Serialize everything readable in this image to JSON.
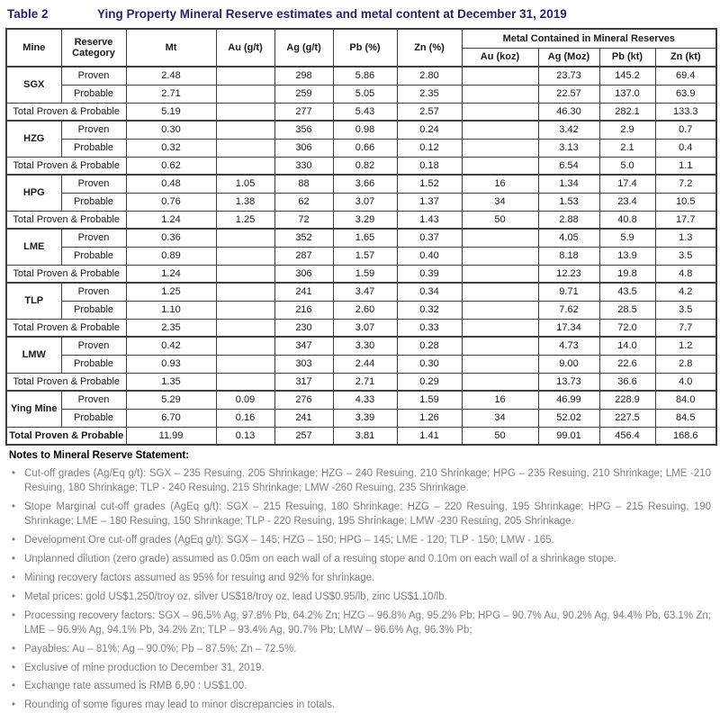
{
  "title": {
    "label": "Table 2",
    "text": "Ying Property Mineral Reserve estimates and metal content at December 31, 2019"
  },
  "accent_color": "#2d2168",
  "table": {
    "headers": {
      "mine": "Mine",
      "reserve_category": "Reserve Category",
      "mt": "Mt",
      "au_gt": "Au (g/t)",
      "ag_gt": "Ag (g/t)",
      "pb_pct": "Pb (%)",
      "zn_pct": "Zn (%)",
      "metal_contained": "Metal Contained in Mineral Reserves",
      "au_koz": "Au (koz)",
      "ag_moz": "Ag (Moz)",
      "pb_kt": "Pb (kt)",
      "zn_kt": "Zn (kt)"
    },
    "total_label": "Total Proven & Probable",
    "groups": [
      {
        "mine": "SGX",
        "rows": [
          {
            "category": "Proven",
            "mt": "2.48",
            "au_gt": "",
            "ag_gt": "298",
            "pb_pct": "5.86",
            "zn_pct": "2.80",
            "au_koz": "",
            "ag_moz": "23.73",
            "pb_kt": "145.2",
            "zn_kt": "69.4"
          },
          {
            "category": "Probable",
            "mt": "2.71",
            "au_gt": "",
            "ag_gt": "259",
            "pb_pct": "5.05",
            "zn_pct": "2.35",
            "au_koz": "",
            "ag_moz": "22.57",
            "pb_kt": "137.0",
            "zn_kt": "63.9"
          }
        ],
        "total": {
          "mt": "5.19",
          "au_gt": "",
          "ag_gt": "277",
          "pb_pct": "5.43",
          "zn_pct": "2.57",
          "au_koz": "",
          "ag_moz": "46.30",
          "pb_kt": "282.1",
          "zn_kt": "133.3"
        }
      },
      {
        "mine": "HZG",
        "rows": [
          {
            "category": "Proven",
            "mt": "0.30",
            "au_gt": "",
            "ag_gt": "356",
            "pb_pct": "0.98",
            "zn_pct": "0.24",
            "au_koz": "",
            "ag_moz": "3.42",
            "pb_kt": "2.9",
            "zn_kt": "0.7"
          },
          {
            "category": "Probable",
            "mt": "0.32",
            "au_gt": "",
            "ag_gt": "306",
            "pb_pct": "0.66",
            "zn_pct": "0.12",
            "au_koz": "",
            "ag_moz": "3.13",
            "pb_kt": "2.1",
            "zn_kt": "0.4"
          }
        ],
        "total": {
          "mt": "0.62",
          "au_gt": "",
          "ag_gt": "330",
          "pb_pct": "0.82",
          "zn_pct": "0.18",
          "au_koz": "",
          "ag_moz": "6.54",
          "pb_kt": "5.0",
          "zn_kt": "1.1"
        }
      },
      {
        "mine": "HPG",
        "rows": [
          {
            "category": "Proven",
            "mt": "0.48",
            "au_gt": "1.05",
            "ag_gt": "88",
            "pb_pct": "3.66",
            "zn_pct": "1.52",
            "au_koz": "16",
            "ag_moz": "1.34",
            "pb_kt": "17.4",
            "zn_kt": "7.2"
          },
          {
            "category": "Probable",
            "mt": "0.76",
            "au_gt": "1.38",
            "ag_gt": "62",
            "pb_pct": "3.07",
            "zn_pct": "1.37",
            "au_koz": "34",
            "ag_moz": "1.53",
            "pb_kt": "23.4",
            "zn_kt": "10.5"
          }
        ],
        "total": {
          "mt": "1.24",
          "au_gt": "1.25",
          "ag_gt": "72",
          "pb_pct": "3.29",
          "zn_pct": "1.43",
          "au_koz": "50",
          "ag_moz": "2.88",
          "pb_kt": "40.8",
          "zn_kt": "17.7"
        }
      },
      {
        "mine": "LME",
        "rows": [
          {
            "category": "Proven",
            "mt": "0.36",
            "au_gt": "",
            "ag_gt": "352",
            "pb_pct": "1.65",
            "zn_pct": "0.37",
            "au_koz": "",
            "ag_moz": "4.05",
            "pb_kt": "5.9",
            "zn_kt": "1.3"
          },
          {
            "category": "Probable",
            "mt": "0.89",
            "au_gt": "",
            "ag_gt": "287",
            "pb_pct": "1.57",
            "zn_pct": "0.40",
            "au_koz": "",
            "ag_moz": "8.18",
            "pb_kt": "13.9",
            "zn_kt": "3.5"
          }
        ],
        "total": {
          "mt": "1.24",
          "au_gt": "",
          "ag_gt": "306",
          "pb_pct": "1.59",
          "zn_pct": "0.39",
          "au_koz": "",
          "ag_moz": "12.23",
          "pb_kt": "19.8",
          "zn_kt": "4.8"
        }
      },
      {
        "mine": "TLP",
        "rows": [
          {
            "category": "Proven",
            "mt": "1.25",
            "au_gt": "",
            "ag_gt": "241",
            "pb_pct": "3.47",
            "zn_pct": "0.34",
            "au_koz": "",
            "ag_moz": "9.71",
            "pb_kt": "43.5",
            "zn_kt": "4.2"
          },
          {
            "category": "Probable",
            "mt": "1.10",
            "au_gt": "",
            "ag_gt": "216",
            "pb_pct": "2.60",
            "zn_pct": "0.32",
            "au_koz": "",
            "ag_moz": "7.62",
            "pb_kt": "28.5",
            "zn_kt": "3.5"
          }
        ],
        "total": {
          "mt": "2.35",
          "au_gt": "",
          "ag_gt": "230",
          "pb_pct": "3.07",
          "zn_pct": "0.33",
          "au_koz": "",
          "ag_moz": "17.34",
          "pb_kt": "72.0",
          "zn_kt": "7.7"
        }
      },
      {
        "mine": "LMW",
        "rows": [
          {
            "category": "Proven",
            "mt": "0.42",
            "au_gt": "",
            "ag_gt": "347",
            "pb_pct": "3.30",
            "zn_pct": "0.28",
            "au_koz": "",
            "ag_moz": "4.73",
            "pb_kt": "14.0",
            "zn_kt": "1.2"
          },
          {
            "category": "Probable",
            "mt": "0.93",
            "au_gt": "",
            "ag_gt": "303",
            "pb_pct": "2.44",
            "zn_pct": "0.30",
            "au_koz": "",
            "ag_moz": "9.00",
            "pb_kt": "22.6",
            "zn_kt": "2.8"
          }
        ],
        "total": {
          "mt": "1.35",
          "au_gt": "",
          "ag_gt": "317",
          "pb_pct": "2.71",
          "zn_pct": "0.29",
          "au_koz": "",
          "ag_moz": "13.73",
          "pb_kt": "36.6",
          "zn_kt": "4.0"
        }
      },
      {
        "mine": "Ying Mine",
        "rows": [
          {
            "category": "Proven",
            "mt": "5.29",
            "au_gt": "0.09",
            "ag_gt": "276",
            "pb_pct": "4.33",
            "zn_pct": "1.59",
            "au_koz": "16",
            "ag_moz": "46.99",
            "pb_kt": "228.9",
            "zn_kt": "84.0"
          },
          {
            "category": "Probable",
            "mt": "6.70",
            "au_gt": "0.16",
            "ag_gt": "241",
            "pb_pct": "3.39",
            "zn_pct": "1.26",
            "au_koz": "34",
            "ag_moz": "52.02",
            "pb_kt": "227.5",
            "zn_kt": "84.5"
          }
        ],
        "total": {
          "mt": "11.99",
          "au_gt": "0.13",
          "ag_gt": "257",
          "pb_pct": "3.81",
          "zn_pct": "1.41",
          "au_koz": "50",
          "ag_moz": "99.01",
          "pb_kt": "456.4",
          "zn_kt": "168.6"
        }
      }
    ]
  },
  "notes": {
    "heading": "Notes to Mineral Reserve Statement:",
    "bullets": [
      "Cut-off grades (Ag/Eq g/t): SGX – 235 Resuing, 205 Shrinkage; HZG – 240 Resuing, 210 Shrinkage; HPG – 235 Resuing, 210 Shrinkage; LME -210 Resuing, 180 Shrinkage; TLP - 240 Resuing, 215 Shrinkage; LMW -260 Resuing, 235 Shrinkage.",
      "Stope Marginal cut-off grades (AgEq g/t): SGX – 215 Resuing, 180 Shrinkage; HZG – 220 Resuing, 195 Shrinkage; HPG – 215 Resuing, 190 Shrinkage; LME – 180 Resuing, 150 Shrinkage; TLP - 220 Resuing, 195 Shrinkage; LMW -230 Resuing, 205 Shrinkage.",
      "Development Ore cut-off grades (AgEq g/t): SGX – 145; HZG – 150; HPG – 145; LME - 120; TLP - 150; LMW - 165.",
      "Unplanned dilution (zero grade) assumed as 0.05m on each wall of a resuing stope and 0.10m on each wall of a shrinkage stope.",
      "Mining recovery factors assumed as 95% for resuing and 92% for shrinkage.",
      "Metal prices: gold US$1,250/troy oz, silver US$18/troy oz, lead US$0.95/lb, zinc US$1.10/lb.",
      "Processing recovery factors: SGX – 96.5% Ag, 97.8% Pb, 64.2% Zn; HZG – 96.8% Ag, 95.2% Pb; HPG – 90.7% Au, 90.2% Ag, 94.4% Pb, 63.1% Zn; LME – 96.9% Ag, 94.1% Pb, 34.2% Zn; TLP – 93.4% Ag, 90.7% Pb; LMW – 96.6% Ag, 96.3% Pb;",
      "Payables: Au – 81%; Ag – 90.0%; Pb – 87.5%; Zn – 72.5%.",
      "Exclusive of mine production to December 31, 2019.",
      "Exchange rate assumed is RMB 6.90 : US$1.00.",
      "Rounding of some figures may lead to minor discrepancies in totals."
    ]
  }
}
